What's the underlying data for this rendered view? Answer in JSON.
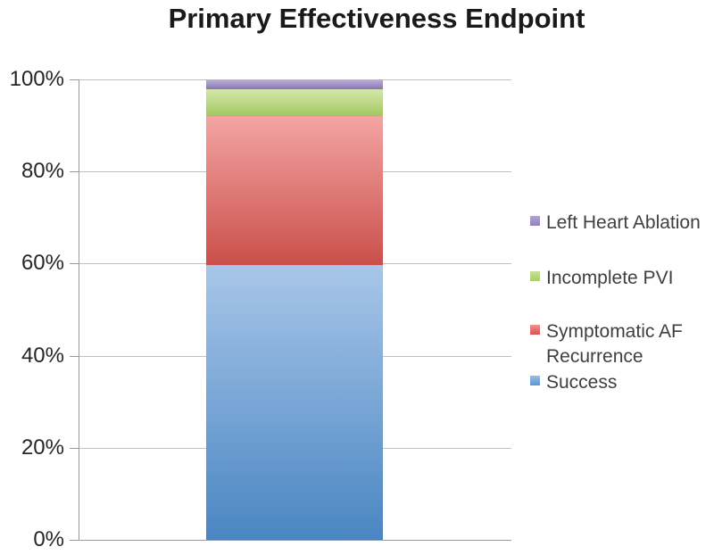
{
  "title": "Primary Effectiveness Endpoint",
  "chart_data": {
    "type": "bar",
    "subtype": "stacked-100-percent",
    "title": "Primary Effectiveness Endpoint",
    "categories": [
      ""
    ],
    "series": [
      {
        "name": "Success",
        "value": 59.7,
        "color_top": "#a8c6e9",
        "color_bottom": "#4a86c2",
        "legend_color_top": "#9cbde4",
        "legend_color_bottom": "#5d94d0"
      },
      {
        "name": "Symptomatic AF Recurrence",
        "value": 32.3,
        "color_top": "#f3a5a3",
        "color_bottom": "#cb4f4b",
        "legend_color_top": "#ef928f",
        "legend_color_bottom": "#d85450"
      },
      {
        "name": "Incomplete PVI",
        "value": 5.8,
        "color_top": "#d6e7ab",
        "color_bottom": "#a2c95f",
        "legend_color_top": "#c9e096",
        "legend_color_bottom": "#a9cd68"
      },
      {
        "name": "Left Heart Ablation",
        "value": 2.2,
        "color_top": "#bcb2d8",
        "color_bottom": "#8977b4",
        "legend_color_top": "#b1a5d1",
        "legend_color_bottom": "#9181bb"
      }
    ],
    "ylim": [
      0,
      100
    ],
    "ytick_step": 20,
    "ytick_labels": [
      "0%",
      "20%",
      "40%",
      "60%",
      "80%",
      "100%"
    ],
    "grid": true,
    "legend_position": "right",
    "legend_order": [
      "Left Heart Ablation",
      "Incomplete PVI",
      "Symptomatic AF Recurrence",
      "Success"
    ]
  },
  "colors": {
    "background": "#ffffff",
    "axis_line": "#9a9a9a",
    "gridline": "#bfbfbf",
    "title_text": "#1a1a1a",
    "axis_text": "#262626",
    "legend_text": "#3f3f3f"
  }
}
